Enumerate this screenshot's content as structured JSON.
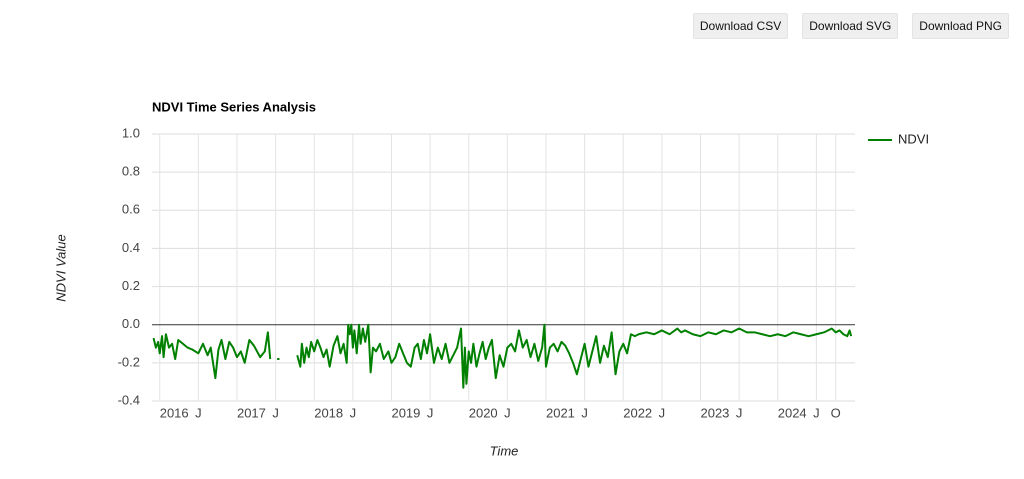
{
  "buttons": [
    "Download CSV",
    "Download SVG",
    "Download PNG"
  ],
  "chart_data": {
    "type": "line",
    "title": "NDVI Time Series Analysis",
    "x_label": "Time",
    "y_label": "NDVI Value",
    "xlim": [
      2015.9,
      2025.0
    ],
    "ylim": [
      -0.4,
      1.0
    ],
    "xticks": [
      2016,
      {
        "value": 2016.5,
        "label": "J"
      },
      2017,
      {
        "value": 2017.5,
        "label": "J"
      },
      2018,
      {
        "value": 2018.5,
        "label": "J"
      },
      2019,
      {
        "value": 2019.5,
        "label": "J"
      },
      2020,
      {
        "value": 2020.5,
        "label": "J"
      },
      2021,
      {
        "value": 2021.5,
        "label": "J"
      },
      2022,
      {
        "value": 2022.5,
        "label": "J"
      },
      2023,
      {
        "value": 2023.5,
        "label": "J"
      },
      2024,
      {
        "value": 2024.5,
        "label": "J"
      },
      {
        "value": 2024.75,
        "label": "O"
      }
    ],
    "yticks": [
      {
        "value": -0.4,
        "label": "-0.4"
      },
      {
        "value": -0.2,
        "label": "-0.2"
      },
      {
        "value": 0,
        "label": "0.0"
      },
      {
        "value": 0.2,
        "label": "0.2"
      },
      {
        "value": 0.4,
        "label": "0.4"
      },
      {
        "value": 0.6,
        "label": "0.6"
      },
      {
        "value": 0.8,
        "label": "0.8"
      },
      {
        "value": 1,
        "label": "1.0"
      }
    ],
    "grid": true,
    "legend": "right",
    "x": [
      2015.92,
      2015.95,
      2015.98,
      2016.0,
      2016.03,
      2016.05,
      2016.08,
      2016.12,
      2016.16,
      2016.2,
      2016.24,
      2016.3,
      2016.36,
      2016.42,
      2016.5,
      2016.56,
      2016.62,
      2016.66,
      2016.72,
      2016.76,
      2016.8,
      2016.85,
      2016.9,
      2016.95,
      2017.0,
      2017.05,
      2017.1,
      2017.16,
      2017.22,
      2017.3,
      2017.36,
      2017.4,
      2017.43,
      2017.46,
      2017.52,
      2017.55,
      2017.65,
      2017.78,
      2017.82,
      2017.84,
      2017.87,
      2017.9,
      2017.93,
      2017.96,
      2018.0,
      2018.04,
      2018.08,
      2018.12,
      2018.16,
      2018.2,
      2018.25,
      2018.3,
      2018.34,
      2018.38,
      2018.42,
      2018.44,
      2018.46,
      2018.48,
      2018.5,
      2018.52,
      2018.55,
      2018.58,
      2018.6,
      2018.63,
      2018.66,
      2018.7,
      2018.73,
      2018.76,
      2018.8,
      2018.85,
      2018.9,
      2018.96,
      2019.0,
      2019.05,
      2019.1,
      2019.15,
      2019.2,
      2019.25,
      2019.3,
      2019.34,
      2019.38,
      2019.42,
      2019.46,
      2019.5,
      2019.55,
      2019.6,
      2019.65,
      2019.7,
      2019.75,
      2019.8,
      2019.85,
      2019.9,
      2019.93,
      2019.95,
      2019.97,
      2020.0,
      2020.03,
      2020.06,
      2020.1,
      2020.14,
      2020.18,
      2020.22,
      2020.26,
      2020.3,
      2020.35,
      2020.4,
      2020.45,
      2020.5,
      2020.55,
      2020.6,
      2020.65,
      2020.7,
      2020.75,
      2020.8,
      2020.85,
      2020.9,
      2020.95,
      2020.98,
      2021.0,
      2021.05,
      2021.1,
      2021.15,
      2021.2,
      2021.25,
      2021.3,
      2021.35,
      2021.4,
      2021.45,
      2021.5,
      2021.55,
      2021.6,
      2021.65,
      2021.7,
      2021.75,
      2021.8,
      2021.85,
      2021.9,
      2021.95,
      2022.0,
      2022.05,
      2022.1,
      2022.15,
      2022.2,
      2022.3,
      2022.4,
      2022.5,
      2022.6,
      2022.7,
      2022.75,
      2022.8,
      2022.9,
      2023.0,
      2023.1,
      2023.2,
      2023.3,
      2023.4,
      2023.5,
      2023.6,
      2023.7,
      2023.8,
      2023.9,
      2024.0,
      2024.1,
      2024.2,
      2024.3,
      2024.4,
      2024.5,
      2024.6,
      2024.7,
      2024.75,
      2024.8,
      2024.85,
      2024.9,
      2024.93,
      2024.95
    ],
    "series": [
      {
        "name": "NDVI",
        "color": "#008000",
        "values": [
          -0.07,
          -0.12,
          -0.09,
          -0.15,
          -0.06,
          -0.17,
          -0.05,
          -0.12,
          -0.1,
          -0.18,
          -0.08,
          -0.1,
          -0.12,
          -0.13,
          -0.15,
          -0.1,
          -0.16,
          -0.12,
          -0.28,
          -0.13,
          -0.08,
          -0.18,
          -0.09,
          -0.12,
          -0.17,
          -0.14,
          -0.2,
          -0.08,
          -0.11,
          -0.17,
          -0.14,
          -0.04,
          -0.18,
          null,
          -0.18,
          -0.18,
          null,
          -0.16,
          -0.22,
          -0.1,
          -0.2,
          -0.12,
          -0.17,
          -0.09,
          -0.14,
          -0.08,
          -0.12,
          -0.17,
          -0.13,
          -0.22,
          -0.11,
          -0.06,
          -0.15,
          -0.1,
          -0.2,
          0.0,
          -0.05,
          0.0,
          -0.12,
          -0.03,
          -0.15,
          0.0,
          -0.1,
          -0.02,
          -0.09,
          0.0,
          -0.25,
          -0.12,
          -0.14,
          -0.1,
          -0.18,
          -0.14,
          -0.2,
          -0.17,
          -0.1,
          -0.15,
          -0.2,
          -0.22,
          -0.12,
          -0.1,
          -0.18,
          -0.08,
          -0.15,
          -0.05,
          -0.2,
          -0.12,
          -0.18,
          -0.1,
          -0.2,
          -0.16,
          -0.12,
          -0.02,
          -0.33,
          -0.12,
          -0.31,
          -0.14,
          -0.2,
          -0.1,
          -0.22,
          -0.15,
          -0.09,
          -0.18,
          -0.12,
          -0.08,
          -0.28,
          -0.16,
          -0.22,
          -0.12,
          -0.1,
          -0.14,
          -0.03,
          -0.12,
          -0.08,
          -0.17,
          -0.1,
          -0.19,
          -0.12,
          0.0,
          -0.22,
          -0.12,
          -0.1,
          -0.14,
          -0.09,
          -0.11,
          -0.15,
          -0.2,
          -0.26,
          -0.18,
          -0.1,
          -0.22,
          -0.14,
          -0.06,
          -0.2,
          -0.11,
          -0.17,
          -0.04,
          -0.26,
          -0.14,
          -0.1,
          -0.15,
          -0.05,
          -0.06,
          -0.05,
          -0.04,
          -0.05,
          -0.03,
          -0.05,
          -0.02,
          -0.04,
          -0.03,
          -0.05,
          -0.06,
          -0.04,
          -0.05,
          -0.03,
          -0.04,
          -0.02,
          -0.04,
          -0.04,
          -0.05,
          -0.06,
          -0.05,
          -0.06,
          -0.04,
          -0.05,
          -0.06,
          -0.05,
          -0.04,
          -0.02,
          -0.04,
          -0.03,
          -0.05,
          -0.06,
          -0.03,
          -0.06
        ]
      }
    ]
  }
}
